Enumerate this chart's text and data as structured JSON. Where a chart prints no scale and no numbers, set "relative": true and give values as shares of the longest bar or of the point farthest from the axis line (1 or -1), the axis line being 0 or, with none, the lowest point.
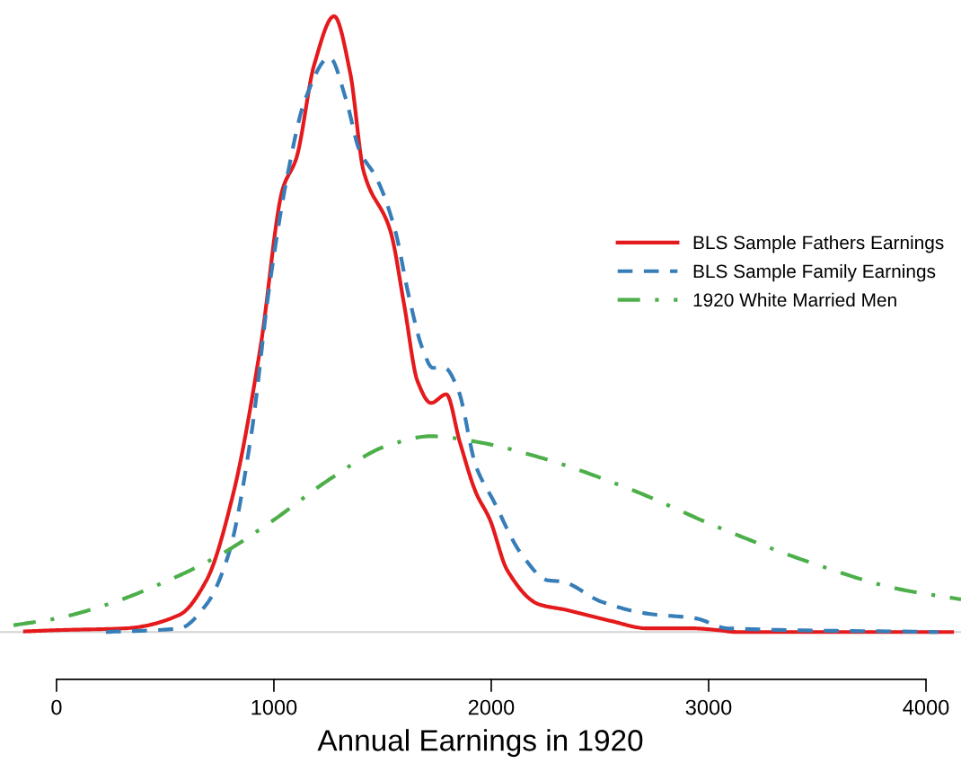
{
  "chart_data": {
    "type": "line",
    "relative": true,
    "xlabel": "Annual Earnings in 1920",
    "xlim": [
      -260,
      4161
    ],
    "xticks": [
      0,
      1000,
      2000,
      3000,
      4000
    ],
    "grid": false,
    "legend": "right",
    "marker": "none",
    "ref_lines": [
      {
        "axis": "y",
        "value": 0,
        "color": "#d3d3d3",
        "line_style": "solid"
      }
    ],
    "series": [
      {
        "name": "BLS Sample Fathers Earnings",
        "color": "#e41a1c",
        "line_style": "solid",
        "x": [
          -145,
          0,
          318,
          566,
          690,
          814,
          938,
          1041,
          1103,
          1186,
          1277,
          1351,
          1413,
          1537,
          1599,
          1661,
          1723,
          1793,
          1855,
          1930,
          1992,
          2074,
          2219,
          2343,
          2550,
          2715,
          2921,
          3045,
          3128,
          4120
        ],
        "values": [
          0.001,
          0.003,
          0.006,
          0.028,
          0.084,
          0.226,
          0.462,
          0.72,
          0.769,
          0.922,
          1,
          0.908,
          0.748,
          0.65,
          0.532,
          0.407,
          0.372,
          0.386,
          0.309,
          0.226,
          0.184,
          0.1,
          0.045,
          0.036,
          0.018,
          0.006,
          0.006,
          0.003,
          0,
          0
        ]
      },
      {
        "name": "BLS Sample Family Earnings",
        "color": "#377eb8",
        "line_style": "dashed",
        "x": [
          227,
          566,
          690,
          793,
          897,
          979,
          1062,
          1145,
          1256,
          1331,
          1393,
          1475,
          1558,
          1620,
          1682,
          1731,
          1785,
          1847,
          1930,
          2012,
          2136,
          2260,
          2322,
          2508,
          2715,
          2942,
          3087,
          4058
        ],
        "values": [
          0,
          0.006,
          0.045,
          0.128,
          0.323,
          0.56,
          0.741,
          0.866,
          0.933,
          0.866,
          0.783,
          0.735,
          0.652,
          0.547,
          0.462,
          0.429,
          0.429,
          0.394,
          0.269,
          0.212,
          0.128,
          0.084,
          0.082,
          0.049,
          0.03,
          0.022,
          0.006,
          0
        ]
      },
      {
        "name": "1920 White Married Men",
        "color": "#4daf4a",
        "line_style": "dashdot",
        "x": [
          -198,
          0,
          236,
          483,
          731,
          979,
          1269,
          1517,
          1723,
          1930,
          2219,
          2632,
          3045,
          3459,
          3872,
          4161
        ],
        "values": [
          0.011,
          0.022,
          0.045,
          0.079,
          0.121,
          0.177,
          0.251,
          0.302,
          0.318,
          0.309,
          0.284,
          0.233,
          0.17,
          0.114,
          0.07,
          0.053
        ]
      }
    ]
  }
}
